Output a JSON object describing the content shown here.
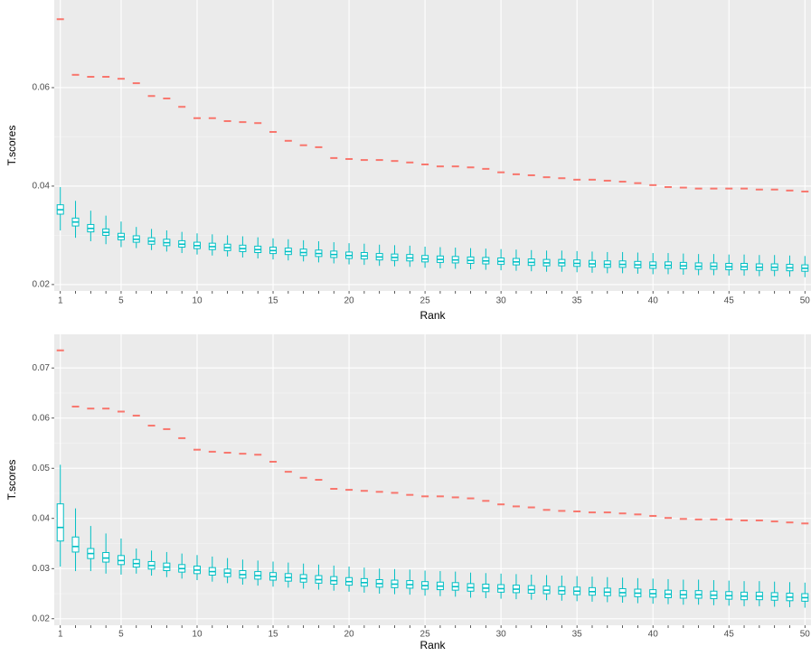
{
  "chart_data": [
    {
      "type": "box",
      "x_label": "Rank",
      "y_label": "T.scores",
      "x": [
        1,
        2,
        3,
        4,
        5,
        6,
        7,
        8,
        9,
        10,
        11,
        12,
        13,
        14,
        15,
        16,
        17,
        18,
        19,
        20,
        21,
        22,
        23,
        24,
        25,
        26,
        27,
        28,
        29,
        30,
        31,
        32,
        33,
        34,
        35,
        36,
        37,
        38,
        39,
        40,
        41,
        42,
        43,
        44,
        45,
        46,
        47,
        48,
        49,
        50
      ],
      "xlim": [
        0.6,
        50.4
      ],
      "xticks": [
        1,
        5,
        10,
        15,
        20,
        25,
        30,
        35,
        40,
        45,
        50
      ],
      "ylim": [
        0.0187,
        0.0778
      ],
      "yticks": [
        0.02,
        0.04,
        0.06
      ],
      "grid": true,
      "observed": {
        "color": "#F8766D",
        "values": [
          0.0739,
          0.0626,
          0.0622,
          0.0622,
          0.0618,
          0.0609,
          0.0583,
          0.0578,
          0.0561,
          0.0538,
          0.0538,
          0.0532,
          0.053,
          0.0528,
          0.051,
          0.0492,
          0.0483,
          0.0479,
          0.0457,
          0.0455,
          0.0453,
          0.0453,
          0.0451,
          0.0448,
          0.0444,
          0.044,
          0.044,
          0.0438,
          0.0435,
          0.0428,
          0.0424,
          0.0422,
          0.0418,
          0.0416,
          0.0413,
          0.0413,
          0.0411,
          0.0409,
          0.0406,
          0.0402,
          0.0398,
          0.0397,
          0.0395,
          0.0395,
          0.0395,
          0.0395,
          0.0393,
          0.0393,
          0.0391,
          0.0389
        ]
      },
      "boxes": {
        "color": "#00BFC4",
        "values": [
          [
            0.031,
            0.0343,
            0.0352,
            0.0362,
            0.0398
          ],
          [
            0.0295,
            0.0319,
            0.0327,
            0.0335,
            0.037
          ],
          [
            0.0288,
            0.0307,
            0.0314,
            0.0322,
            0.035
          ],
          [
            0.0282,
            0.03,
            0.0306,
            0.0313,
            0.034
          ],
          [
            0.0276,
            0.0291,
            0.0297,
            0.0304,
            0.0328
          ],
          [
            0.0274,
            0.0286,
            0.0292,
            0.0299,
            0.0317
          ],
          [
            0.027,
            0.0282,
            0.0288,
            0.0295,
            0.0313
          ],
          [
            0.0267,
            0.0279,
            0.0285,
            0.0292,
            0.031
          ],
          [
            0.0264,
            0.0276,
            0.0282,
            0.0289,
            0.0307
          ],
          [
            0.0261,
            0.0273,
            0.0279,
            0.0286,
            0.0304
          ],
          [
            0.0259,
            0.0271,
            0.0277,
            0.0284,
            0.0302
          ],
          [
            0.0257,
            0.0269,
            0.0275,
            0.0282,
            0.03
          ],
          [
            0.0255,
            0.0267,
            0.0273,
            0.028,
            0.0298
          ],
          [
            0.0253,
            0.0265,
            0.0271,
            0.0278,
            0.0296
          ],
          [
            0.0251,
            0.0263,
            0.0269,
            0.0276,
            0.0294
          ],
          [
            0.0249,
            0.0261,
            0.0267,
            0.0274,
            0.0292
          ],
          [
            0.0247,
            0.0259,
            0.0265,
            0.0272,
            0.029
          ],
          [
            0.0245,
            0.0257,
            0.0263,
            0.027,
            0.0288
          ],
          [
            0.0243,
            0.0255,
            0.0261,
            0.0268,
            0.0286
          ],
          [
            0.0241,
            0.0253,
            0.0259,
            0.0266,
            0.0284
          ],
          [
            0.024,
            0.0252,
            0.0258,
            0.0265,
            0.0283
          ],
          [
            0.0238,
            0.025,
            0.0256,
            0.0263,
            0.0281
          ],
          [
            0.0237,
            0.0249,
            0.0255,
            0.0262,
            0.028
          ],
          [
            0.0236,
            0.0248,
            0.0254,
            0.0261,
            0.0279
          ],
          [
            0.0234,
            0.0246,
            0.0252,
            0.0259,
            0.0277
          ],
          [
            0.0233,
            0.0245,
            0.0251,
            0.0258,
            0.0276
          ],
          [
            0.0232,
            0.0244,
            0.025,
            0.0257,
            0.0275
          ],
          [
            0.0231,
            0.0243,
            0.0249,
            0.0256,
            0.0274
          ],
          [
            0.023,
            0.0242,
            0.0248,
            0.0255,
            0.0273
          ],
          [
            0.0229,
            0.0241,
            0.0247,
            0.0254,
            0.0272
          ],
          [
            0.0228,
            0.024,
            0.0246,
            0.0253,
            0.0271
          ],
          [
            0.0227,
            0.0239,
            0.0245,
            0.0252,
            0.027
          ],
          [
            0.0226,
            0.0238,
            0.0244,
            0.0251,
            0.0269
          ],
          [
            0.0226,
            0.0238,
            0.0244,
            0.0251,
            0.0269
          ],
          [
            0.0225,
            0.0237,
            0.0243,
            0.025,
            0.0268
          ],
          [
            0.0224,
            0.0236,
            0.0242,
            0.0249,
            0.0267
          ],
          [
            0.0223,
            0.0235,
            0.0241,
            0.0248,
            0.0266
          ],
          [
            0.0223,
            0.0235,
            0.0241,
            0.0248,
            0.0266
          ],
          [
            0.0222,
            0.0234,
            0.024,
            0.0247,
            0.0265
          ],
          [
            0.0221,
            0.0233,
            0.0239,
            0.0246,
            0.0264
          ],
          [
            0.0221,
            0.0233,
            0.0239,
            0.0246,
            0.0264
          ],
          [
            0.022,
            0.0232,
            0.0238,
            0.0245,
            0.0263
          ],
          [
            0.0219,
            0.0231,
            0.0237,
            0.0244,
            0.0262
          ],
          [
            0.0219,
            0.0231,
            0.0237,
            0.0244,
            0.0262
          ],
          [
            0.0218,
            0.023,
            0.0236,
            0.0243,
            0.0261
          ],
          [
            0.0218,
            0.023,
            0.0236,
            0.0243,
            0.0261
          ],
          [
            0.0217,
            0.0229,
            0.0235,
            0.0242,
            0.026
          ],
          [
            0.0217,
            0.0229,
            0.0235,
            0.0242,
            0.026
          ],
          [
            0.0216,
            0.0228,
            0.0234,
            0.0241,
            0.0259
          ],
          [
            0.0215,
            0.0227,
            0.0233,
            0.024,
            0.0258
          ]
        ]
      }
    },
    {
      "type": "box",
      "x_label": "Rank",
      "y_label": "T.scores",
      "x": [
        1,
        2,
        3,
        4,
        5,
        6,
        7,
        8,
        9,
        10,
        11,
        12,
        13,
        14,
        15,
        16,
        17,
        18,
        19,
        20,
        21,
        22,
        23,
        24,
        25,
        26,
        27,
        28,
        29,
        30,
        31,
        32,
        33,
        34,
        35,
        36,
        37,
        38,
        39,
        40,
        41,
        42,
        43,
        44,
        45,
        46,
        47,
        48,
        49,
        50
      ],
      "xlim": [
        0.6,
        50.4
      ],
      "xticks": [
        1,
        5,
        10,
        15,
        20,
        25,
        30,
        35,
        40,
        45,
        50
      ],
      "ylim": [
        0.0187,
        0.0767
      ],
      "yticks": [
        0.02,
        0.03,
        0.04,
        0.05,
        0.06,
        0.07
      ],
      "grid": true,
      "observed": {
        "color": "#F8766D",
        "values": [
          0.0735,
          0.0623,
          0.0619,
          0.0619,
          0.0613,
          0.0605,
          0.0585,
          0.0578,
          0.056,
          0.0537,
          0.0533,
          0.0531,
          0.0529,
          0.0527,
          0.0513,
          0.0493,
          0.0481,
          0.0477,
          0.0459,
          0.0457,
          0.0455,
          0.0453,
          0.0451,
          0.0447,
          0.0444,
          0.0444,
          0.0442,
          0.044,
          0.0435,
          0.0428,
          0.0424,
          0.0422,
          0.0417,
          0.0415,
          0.0414,
          0.0412,
          0.0412,
          0.041,
          0.0408,
          0.0405,
          0.0401,
          0.0399,
          0.0398,
          0.0398,
          0.0398,
          0.0396,
          0.0396,
          0.0394,
          0.0392,
          0.039
        ]
      },
      "boxes": {
        "color": "#00BFC4",
        "values": [
          [
            0.0304,
            0.0355,
            0.0382,
            0.0429,
            0.0507
          ],
          [
            0.0295,
            0.0333,
            0.0344,
            0.0363,
            0.042
          ],
          [
            0.0295,
            0.032,
            0.033,
            0.034,
            0.0385
          ],
          [
            0.029,
            0.0313,
            0.0321,
            0.0332,
            0.037
          ],
          [
            0.0288,
            0.0308,
            0.0316,
            0.0326,
            0.036
          ],
          [
            0.029,
            0.0303,
            0.031,
            0.0318,
            0.034
          ],
          [
            0.0286,
            0.0299,
            0.0306,
            0.0314,
            0.0336
          ],
          [
            0.0283,
            0.0296,
            0.0303,
            0.0311,
            0.0333
          ],
          [
            0.028,
            0.0293,
            0.03,
            0.0308,
            0.033
          ],
          [
            0.0277,
            0.029,
            0.0297,
            0.0305,
            0.0327
          ],
          [
            0.0274,
            0.0287,
            0.0294,
            0.0302,
            0.0324
          ],
          [
            0.0271,
            0.0284,
            0.0291,
            0.0299,
            0.0321
          ],
          [
            0.0268,
            0.0281,
            0.0288,
            0.0296,
            0.0318
          ],
          [
            0.0266,
            0.0279,
            0.0286,
            0.0294,
            0.0316
          ],
          [
            0.0264,
            0.0277,
            0.0284,
            0.0292,
            0.0314
          ],
          [
            0.0262,
            0.0275,
            0.0282,
            0.029,
            0.0312
          ],
          [
            0.026,
            0.0273,
            0.028,
            0.0288,
            0.031
          ],
          [
            0.0258,
            0.0271,
            0.0278,
            0.0286,
            0.0308
          ],
          [
            0.0256,
            0.0269,
            0.0276,
            0.0284,
            0.0306
          ],
          [
            0.0254,
            0.0267,
            0.0274,
            0.0282,
            0.0304
          ],
          [
            0.0252,
            0.0265,
            0.0272,
            0.028,
            0.0302
          ],
          [
            0.025,
            0.0263,
            0.027,
            0.0278,
            0.03
          ],
          [
            0.0249,
            0.0262,
            0.0269,
            0.0277,
            0.0299
          ],
          [
            0.0248,
            0.0261,
            0.0268,
            0.0276,
            0.0298
          ],
          [
            0.0246,
            0.0259,
            0.0266,
            0.0274,
            0.0296
          ],
          [
            0.0245,
            0.0258,
            0.0265,
            0.0273,
            0.0295
          ],
          [
            0.0244,
            0.0257,
            0.0264,
            0.0272,
            0.0294
          ],
          [
            0.0242,
            0.0255,
            0.0262,
            0.027,
            0.0292
          ],
          [
            0.0241,
            0.0254,
            0.0261,
            0.0269,
            0.0291
          ],
          [
            0.024,
            0.0253,
            0.026,
            0.0268,
            0.029
          ],
          [
            0.0239,
            0.0252,
            0.0259,
            0.0267,
            0.0289
          ],
          [
            0.0238,
            0.0251,
            0.0258,
            0.0266,
            0.0288
          ],
          [
            0.0237,
            0.025,
            0.0257,
            0.0265,
            0.0287
          ],
          [
            0.0236,
            0.0249,
            0.0256,
            0.0264,
            0.0286
          ],
          [
            0.0235,
            0.0248,
            0.0255,
            0.0263,
            0.0285
          ],
          [
            0.0234,
            0.0247,
            0.0254,
            0.0262,
            0.0284
          ],
          [
            0.0233,
            0.0246,
            0.0253,
            0.0261,
            0.0283
          ],
          [
            0.0232,
            0.0245,
            0.0252,
            0.026,
            0.0282
          ],
          [
            0.0231,
            0.0244,
            0.0251,
            0.0259,
            0.0281
          ],
          [
            0.023,
            0.0243,
            0.025,
            0.0258,
            0.028
          ],
          [
            0.0229,
            0.0242,
            0.0249,
            0.0257,
            0.0279
          ],
          [
            0.0228,
            0.0241,
            0.0248,
            0.0256,
            0.0278
          ],
          [
            0.0228,
            0.0241,
            0.0248,
            0.0256,
            0.0278
          ],
          [
            0.0227,
            0.024,
            0.0247,
            0.0255,
            0.0277
          ],
          [
            0.0226,
            0.0239,
            0.0246,
            0.0254,
            0.0276
          ],
          [
            0.0225,
            0.0238,
            0.0245,
            0.0253,
            0.0275
          ],
          [
            0.0225,
            0.0238,
            0.0245,
            0.0253,
            0.0275
          ],
          [
            0.0224,
            0.0237,
            0.0244,
            0.0252,
            0.0274
          ],
          [
            0.0223,
            0.0236,
            0.0243,
            0.0251,
            0.0273
          ],
          [
            0.0222,
            0.0235,
            0.0242,
            0.025,
            0.0272
          ]
        ]
      }
    }
  ]
}
